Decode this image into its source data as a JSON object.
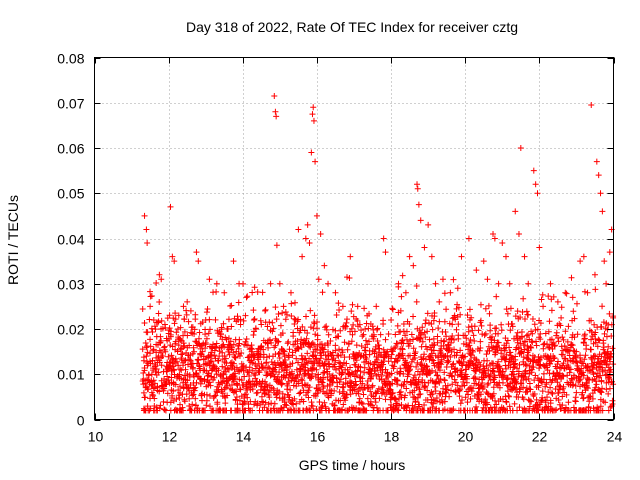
{
  "chart_data": {
    "type": "scatter",
    "title": "Day 318 of 2022, Rate Of TEC Index for receiver cztg",
    "xlabel": "GPS time / hours",
    "ylabel": "ROTI / TECUs",
    "xlim": [
      10,
      24
    ],
    "ylim": [
      0,
      0.08
    ],
    "x_ticks": [
      10,
      12,
      14,
      16,
      18,
      20,
      22,
      24
    ],
    "x_tick_labels": [
      "10",
      "12",
      "14",
      "16",
      "18",
      "20",
      "22",
      "24"
    ],
    "y_ticks": [
      0,
      0.01,
      0.02,
      0.03,
      0.04,
      0.05,
      0.06,
      0.07,
      0.08
    ],
    "y_tick_labels": [
      "0",
      "0.01",
      "0.02",
      "0.03",
      "0.04",
      "0.05",
      "0.06",
      "0.07",
      "0.08"
    ],
    "grid": true,
    "marker": "+",
    "series_color": "#ff0000",
    "series": [
      {
        "name": "ROTI",
        "points": [
          [
            11.35,
            0.045
          ],
          [
            11.4,
            0.042
          ],
          [
            11.42,
            0.039
          ],
          [
            11.5,
            0.025
          ],
          [
            11.6,
            0.022
          ],
          [
            11.75,
            0.032
          ],
          [
            11.8,
            0.031
          ],
          [
            11.9,
            0.021
          ],
          [
            12.0,
            0.019
          ],
          [
            12.05,
            0.047
          ],
          [
            12.1,
            0.036
          ],
          [
            12.15,
            0.035
          ],
          [
            12.25,
            0.02
          ],
          [
            12.4,
            0.025
          ],
          [
            12.5,
            0.026
          ],
          [
            12.6,
            0.024
          ],
          [
            12.75,
            0.037
          ],
          [
            12.8,
            0.035
          ],
          [
            13.0,
            0.022
          ],
          [
            13.1,
            0.031
          ],
          [
            13.3,
            0.03
          ],
          [
            13.5,
            0.028
          ],
          [
            13.6,
            0.02
          ],
          [
            13.75,
            0.035
          ],
          [
            13.9,
            0.03
          ],
          [
            14.1,
            0.027
          ],
          [
            14.3,
            0.022
          ],
          [
            14.5,
            0.021
          ],
          [
            14.6,
            0.024
          ],
          [
            14.75,
            0.03
          ],
          [
            14.85,
            0.0715
          ],
          [
            14.88,
            0.068
          ],
          [
            14.9,
            0.067
          ],
          [
            14.92,
            0.0385
          ],
          [
            15.0,
            0.03
          ],
          [
            15.1,
            0.025
          ],
          [
            15.3,
            0.028
          ],
          [
            15.5,
            0.042
          ],
          [
            15.6,
            0.036
          ],
          [
            15.7,
            0.04
          ],
          [
            15.75,
            0.043
          ],
          [
            15.8,
            0.039
          ],
          [
            15.85,
            0.059
          ],
          [
            15.88,
            0.0675
          ],
          [
            15.9,
            0.069
          ],
          [
            15.92,
            0.066
          ],
          [
            15.95,
            0.057
          ],
          [
            16.0,
            0.045
          ],
          [
            16.05,
            0.031
          ],
          [
            16.1,
            0.041
          ],
          [
            16.2,
            0.034
          ],
          [
            16.3,
            0.03
          ],
          [
            16.5,
            0.028
          ],
          [
            16.7,
            0.025
          ],
          [
            16.9,
            0.036
          ],
          [
            17.1,
            0.025
          ],
          [
            17.3,
            0.02
          ],
          [
            17.6,
            0.025
          ],
          [
            17.8,
            0.04
          ],
          [
            17.85,
            0.037
          ],
          [
            18.0,
            0.022
          ],
          [
            18.2,
            0.03
          ],
          [
            18.4,
            0.028
          ],
          [
            18.5,
            0.036
          ],
          [
            18.6,
            0.034
          ],
          [
            18.7,
            0.052
          ],
          [
            18.72,
            0.051
          ],
          [
            18.75,
            0.0475
          ],
          [
            18.8,
            0.044
          ],
          [
            18.9,
            0.038
          ],
          [
            19.0,
            0.043
          ],
          [
            19.1,
            0.036
          ],
          [
            19.2,
            0.03
          ],
          [
            19.3,
            0.026
          ],
          [
            19.4,
            0.031
          ],
          [
            19.6,
            0.028
          ],
          [
            19.8,
            0.029
          ],
          [
            19.9,
            0.036
          ],
          [
            20.1,
            0.04
          ],
          [
            20.3,
            0.033
          ],
          [
            20.5,
            0.035
          ],
          [
            20.6,
            0.031
          ],
          [
            20.75,
            0.041
          ],
          [
            20.8,
            0.04
          ],
          [
            20.9,
            0.03
          ],
          [
            21.0,
            0.039
          ],
          [
            21.1,
            0.036
          ],
          [
            21.2,
            0.03
          ],
          [
            21.35,
            0.046
          ],
          [
            21.45,
            0.041
          ],
          [
            21.5,
            0.06
          ],
          [
            21.6,
            0.036
          ],
          [
            21.7,
            0.03
          ],
          [
            21.85,
            0.055
          ],
          [
            21.9,
            0.052
          ],
          [
            21.95,
            0.05
          ],
          [
            22.0,
            0.038
          ],
          [
            22.1,
            0.025
          ],
          [
            22.3,
            0.03
          ],
          [
            22.5,
            0.026
          ],
          [
            22.7,
            0.028
          ],
          [
            22.9,
            0.027
          ],
          [
            23.1,
            0.035
          ],
          [
            23.2,
            0.036
          ],
          [
            23.3,
            0.028
          ],
          [
            23.4,
            0.0695
          ],
          [
            23.5,
            0.032
          ],
          [
            23.55,
            0.057
          ],
          [
            23.6,
            0.054
          ],
          [
            23.65,
            0.05
          ],
          [
            23.7,
            0.046
          ],
          [
            23.75,
            0.035
          ],
          [
            23.8,
            0.03
          ],
          [
            23.9,
            0.037
          ],
          [
            23.95,
            0.042
          ]
        ],
        "dense_band": {
          "x_start": 11.3,
          "x_end": 24.0,
          "typical_min": 0.004,
          "typical_max": 0.02,
          "center": 0.01
        }
      }
    ]
  }
}
